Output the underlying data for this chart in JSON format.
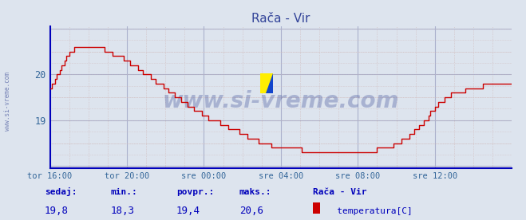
{
  "title": "Rača - Vir",
  "bg_color": "#dde4ee",
  "plot_bg_color": "#dde4ee",
  "line_color": "#cc0000",
  "axis_color": "#0000bb",
  "grid_color_major": "#aab0cc",
  "grid_color_minor": "#d0b8b8",
  "tick_label_color": "#336699",
  "title_color": "#334499",
  "watermark": "www.si-vreme.com",
  "watermark_color": "#223388",
  "watermark_alpha": 0.28,
  "tick_labels": [
    "tor 16:00",
    "tor 20:00",
    "sre 00:00",
    "sre 04:00",
    "sre 08:00",
    "sre 12:00"
  ],
  "tick_positions": [
    0,
    48,
    96,
    144,
    192,
    240
  ],
  "total_points": 288,
  "ylim_min": 17.95,
  "ylim_max": 21.05,
  "yticks": [
    19,
    20
  ],
  "footer_labels": [
    "sedaj:",
    "min.:",
    "povpr.:",
    "maks.:"
  ],
  "footer_values": [
    "19,8",
    "18,3",
    "19,4",
    "20,6"
  ],
  "legend_station": "Rača - Vir",
  "legend_label": "temperatura[C]",
  "legend_color": "#cc0000",
  "sidebar_text": "www.si-vreme.com",
  "key_x": [
    0,
    6,
    12,
    18,
    24,
    30,
    36,
    42,
    48,
    60,
    72,
    84,
    96,
    108,
    120,
    132,
    144,
    156,
    168,
    180,
    192,
    204,
    210,
    216,
    222,
    228,
    234,
    240,
    252,
    264,
    276,
    288
  ],
  "key_y": [
    19.7,
    20.1,
    20.5,
    20.6,
    20.6,
    20.6,
    20.5,
    20.4,
    20.3,
    20.0,
    19.7,
    19.4,
    19.1,
    18.9,
    18.7,
    18.5,
    18.4,
    18.35,
    18.3,
    18.3,
    18.3,
    18.35,
    18.4,
    18.5,
    18.6,
    18.8,
    19.0,
    19.3,
    19.6,
    19.7,
    19.8,
    19.85
  ]
}
